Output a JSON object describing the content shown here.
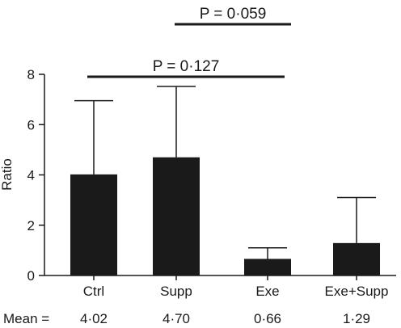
{
  "chart_data": {
    "type": "bar",
    "categories": [
      "Ctrl",
      "Supp",
      "Exe",
      "Exe+Supp"
    ],
    "values": [
      4.02,
      4.7,
      0.66,
      1.29
    ],
    "error_upper": [
      6.95,
      7.52,
      1.1,
      3.1
    ],
    "ylabel": "Ratio",
    "ylim": [
      0,
      8
    ],
    "yticks": [
      "0",
      "2",
      "4",
      "6",
      "8"
    ],
    "ytick_values": [
      0,
      2,
      4,
      6,
      8
    ],
    "bar_color": "#1a1a1a",
    "grid": false,
    "annotations": [
      {
        "label": "P = 0·059",
        "from_category": 1,
        "to_category": 2,
        "p_value": 0.059
      },
      {
        "label": "P = 0·127",
        "from_category": 0,
        "to_category": 2,
        "p_value": 0.127
      }
    ],
    "mean_row": {
      "label": "Mean =",
      "values": [
        "4·02",
        "4·70",
        "0·66",
        "1·29"
      ]
    }
  }
}
